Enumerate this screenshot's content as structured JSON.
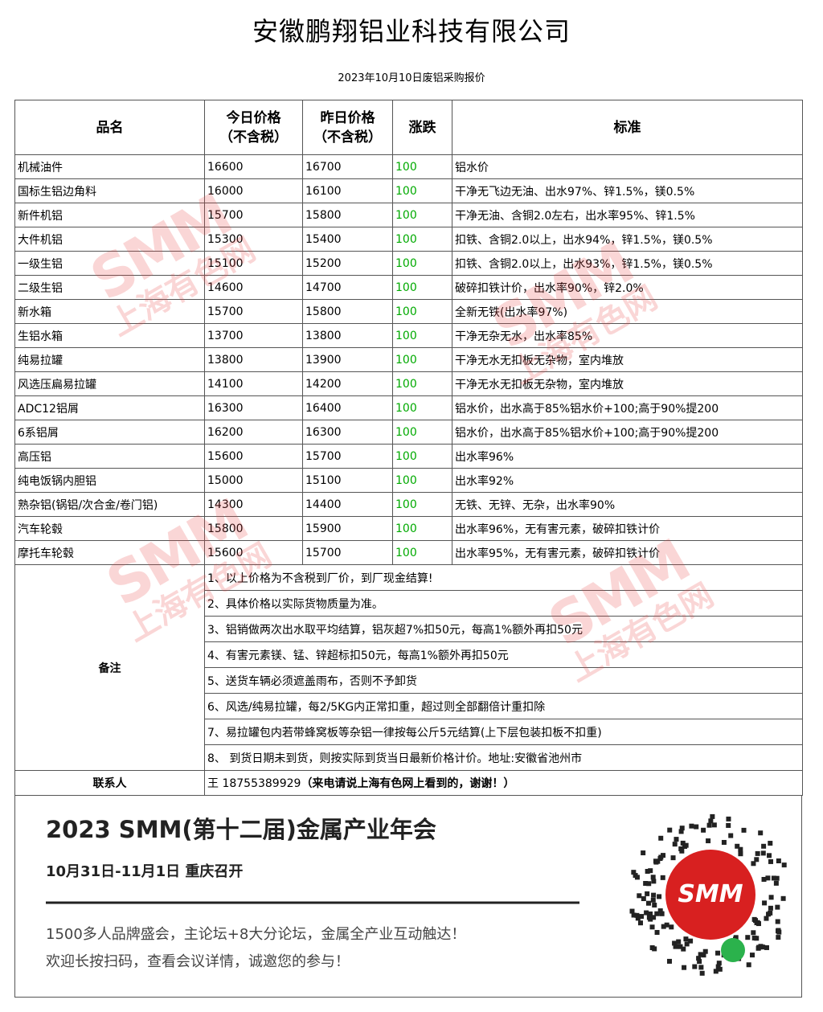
{
  "header": {
    "title": "安徽鹏翔铝业科技有限公司",
    "subtitle": "2023年10月10日废铝采购报价"
  },
  "table": {
    "headers": [
      "品名",
      "今日价格\n（不含税）",
      "昨日价格\n（不含税）",
      "涨跌",
      "标准"
    ],
    "rows": [
      [
        "机械油件",
        16600,
        16700,
        100,
        "铝水价"
      ],
      [
        "国标生铝边角料",
        16000,
        16100,
        100,
        "干净无飞边无油、出水97%、锌1.5%，镁0.5%"
      ],
      [
        "新件机铝",
        15700,
        15800,
        100,
        "干净无油、含铜2.0左右，出水率95%、锌1.5%"
      ],
      [
        "大件机铝",
        15300,
        15400,
        100,
        "扣铁、含铜2.0以上，出水94%，锌1.5%，镁0.5%"
      ],
      [
        "一级生铝",
        15100,
        15200,
        100,
        "扣铁、含铜2.0以上，出水93%，锌1.5%，镁0.5%"
      ],
      [
        "二级生铝",
        14600,
        14700,
        100,
        "破碎扣铁计价，出水率90%，锌2.0%"
      ],
      [
        "新水箱",
        15700,
        15800,
        100,
        "全新无铁(出水率97%)"
      ],
      [
        "生铝水箱",
        13700,
        13800,
        100,
        "干净无杂无水，出水率85%"
      ],
      [
        "纯易拉罐",
        13800,
        13900,
        100,
        "干净无水无扣板无杂物，室内堆放"
      ],
      [
        "风选压扁易拉罐",
        14100,
        14200,
        100,
        "干净无水无扣板无杂物，室内堆放"
      ],
      [
        "ADC12铝屑",
        16300,
        16400,
        100,
        "铝水价，出水高于85%铝水价+100;高于90%提200"
      ],
      [
        "6系铝屑",
        16200,
        16300,
        100,
        "铝水价，出水高于85%铝水价+100;高于90%提200"
      ],
      [
        "高压铝",
        15600,
        15700,
        100,
        "出水率96%"
      ],
      [
        "纯电饭锅内胆铝",
        15000,
        15100,
        100,
        "出水率92%"
      ],
      [
        "熟杂铝(锅铝/次合金/卷门铝)",
        14300,
        14400,
        100,
        "无铁、无锌、无杂，出水率90%"
      ],
      [
        "汽车轮毂",
        15800,
        15900,
        100,
        "出水率96%，无有害元素，破碎扣铁计价"
      ],
      [
        "摩托车轮毂",
        15600,
        15700,
        100,
        "出水率95%，无有害元素，破碎扣铁计价"
      ]
    ],
    "notes": {
      "label": "备注",
      "items": [
        "1、以上价格为不含税到厂价，到厂现金结算!",
        "2、具体价格以实际货物质量为准。",
        "3、铝销做两次出水取平均结算，铝灰超7%扣50元，每高1%额外再扣50元",
        "4、有害元素镁、锰、锌超标扣50元，每高1%额外再扣50元",
        "5、送货车辆必须遮盖雨布，否则不予卸货",
        "6、风选/纯易拉罐，每2/5KG内正常扣重，超过则全部翻倍计重扣除",
        "7、易拉罐包内若带蜂窝板等杂铝一律按每公斤5元结算(上下层包装扣板不扣重)",
        "8、 到货日期未到货，则按实际到货当日最新价格计价。地址:安徽省池州市"
      ]
    },
    "contact": {
      "label": "联系人",
      "value": "王 18755389929",
      "note": "（来电请说上海有色网上看到的，谢谢！）"
    }
  },
  "banner": {
    "title": "2023 SMM(第十二届)金属产业年会",
    "date": "10月31日-11月1日  重庆召开",
    "line1": "1500多人品牌盛会，主论坛+8大分论坛，金属全产业互动触达！",
    "line2": "欢迎长按扫码，查看会议详情，诚邀您的参与！"
  },
  "watermark": {
    "logo": "SMM",
    "name": "上海有色网"
  }
}
